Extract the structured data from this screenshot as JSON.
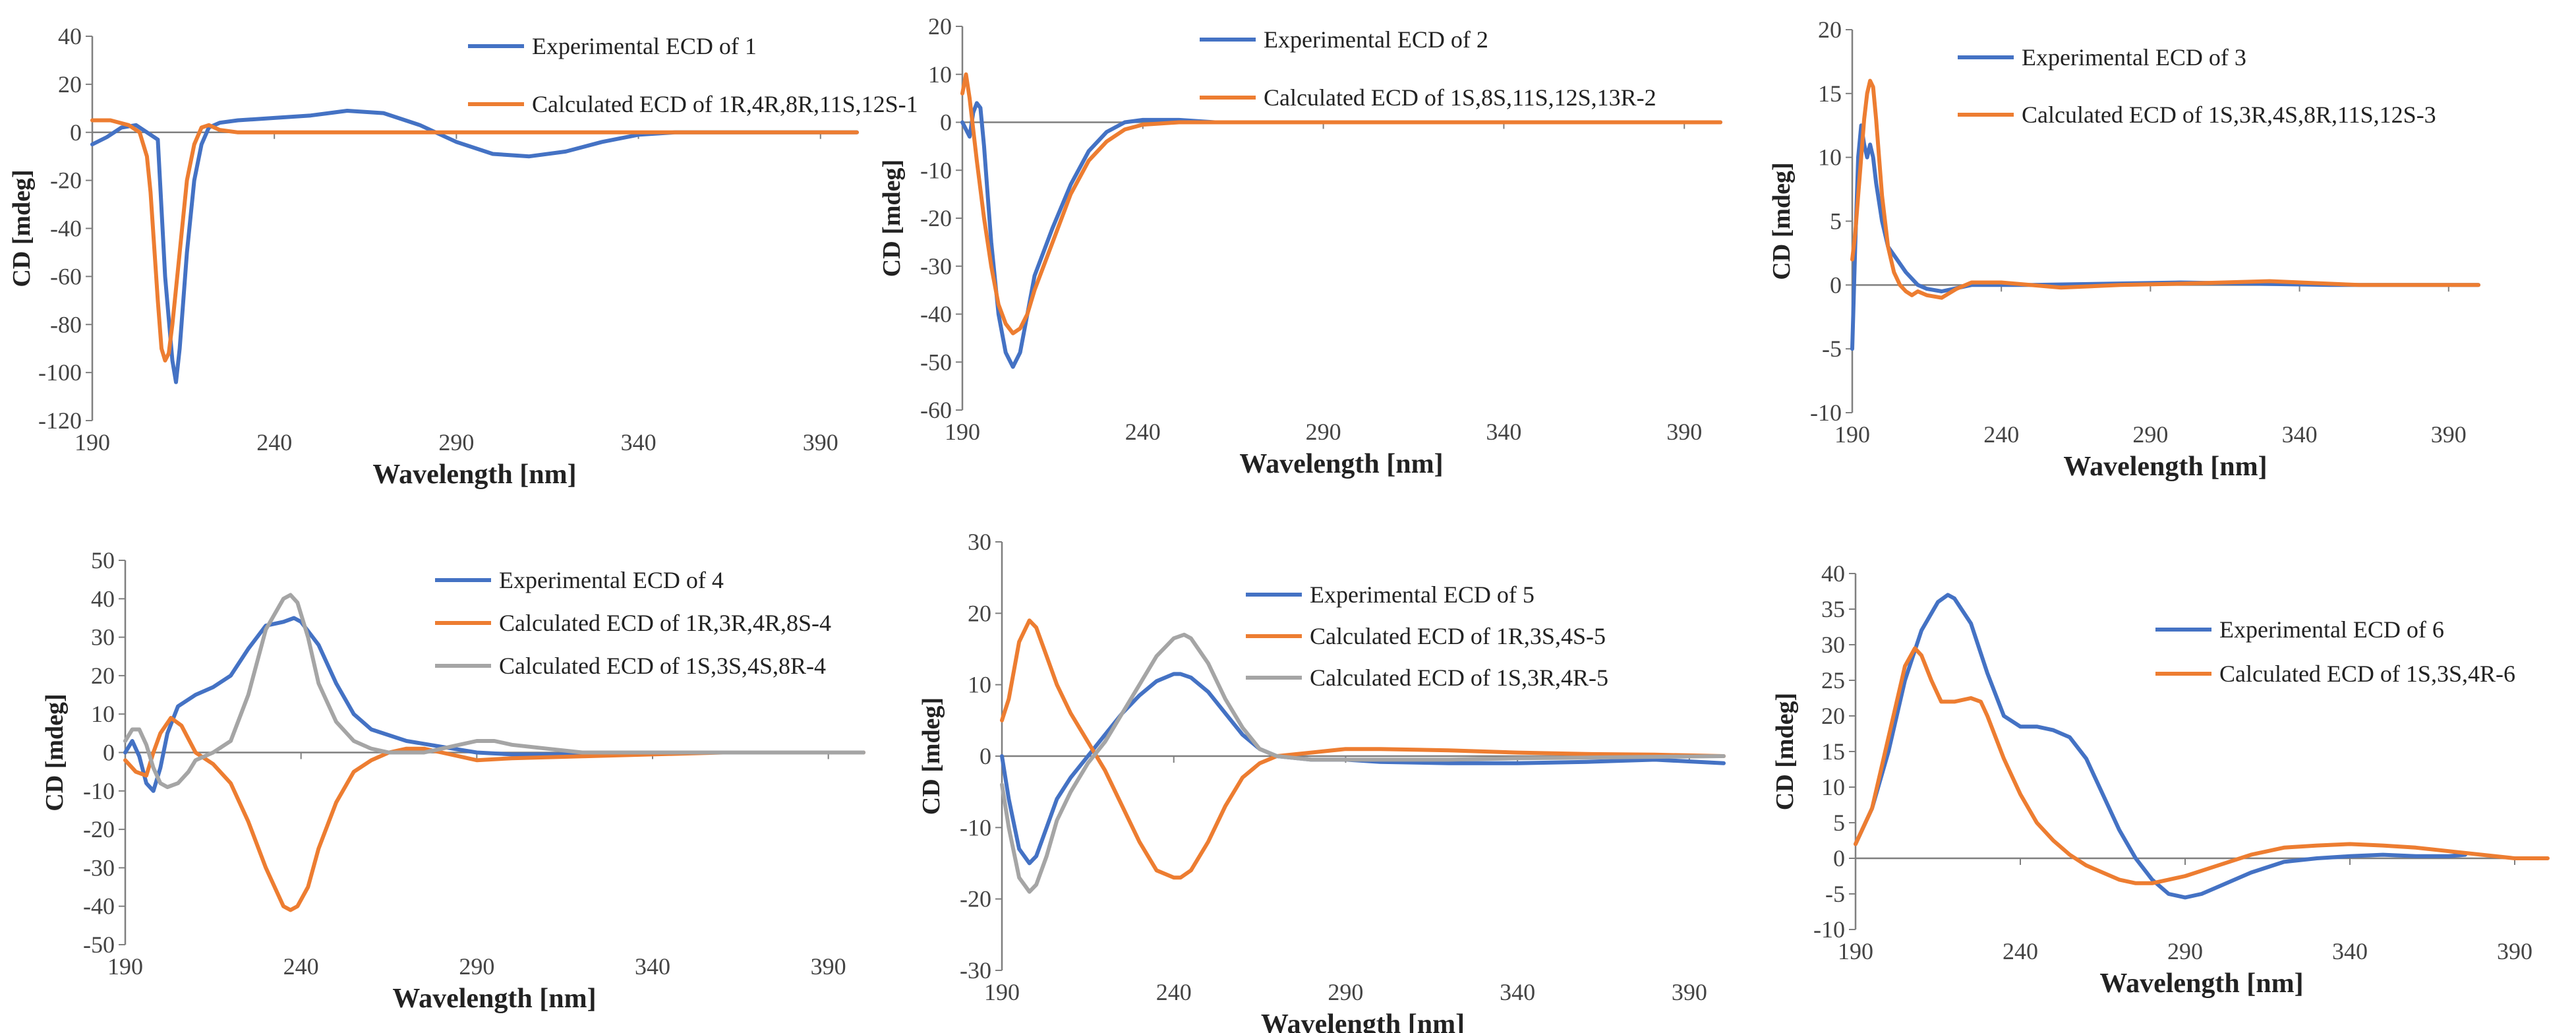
{
  "figure_title": "ECD comparison panels for compounds 1-6",
  "colors": {
    "experimental": "#4472C4",
    "calc_a": "#ED7D31",
    "calc_b": "#A5A5A5",
    "axis": "#7F7F7F"
  },
  "chart_data": [
    {
      "type": "line",
      "panel": "1",
      "xlabel": "Wavelength [nm]",
      "ylabel": "CD [mdeg]",
      "xlim": [
        190,
        400
      ],
      "ylim": [
        -120,
        40
      ],
      "x_ticks": [
        "190",
        "240",
        "290",
        "340",
        "390"
      ],
      "y_ticks": [
        "40",
        "20",
        "0",
        "-20",
        "-40",
        "-60",
        "-80",
        "-100",
        "-120"
      ],
      "series": [
        {
          "name": "Experimental ECD of 1",
          "color_key": "experimental",
          "x": [
            190,
            194,
            198,
            202,
            205,
            208,
            210,
            212,
            213,
            214,
            216,
            218,
            220,
            222,
            225,
            230,
            240,
            250,
            260,
            270,
            280,
            290,
            300,
            310,
            320,
            330,
            340,
            350,
            360,
            380,
            400
          ],
          "y": [
            -5,
            -2,
            2,
            3,
            0,
            -3,
            -60,
            -95,
            -104,
            -90,
            -50,
            -20,
            -5,
            2,
            4,
            5,
            6,
            7,
            9,
            8,
            3,
            -4,
            -9,
            -10,
            -8,
            -4,
            -1,
            0,
            0,
            0,
            0
          ]
        },
        {
          "name": "Calculated ECD of 1R,4R,8R,11S,12S-1",
          "color_key": "calc_a",
          "x": [
            190,
            195,
            200,
            203,
            205,
            206,
            208,
            209,
            210,
            211,
            212,
            214,
            216,
            218,
            220,
            222,
            225,
            230,
            240,
            260,
            300,
            400
          ],
          "y": [
            5,
            5,
            3,
            0,
            -10,
            -25,
            -70,
            -90,
            -95,
            -92,
            -80,
            -50,
            -20,
            -5,
            2,
            3,
            1,
            0,
            0,
            0,
            0,
            0
          ]
        }
      ]
    },
    {
      "type": "line",
      "panel": "2",
      "xlabel": "Wavelength [nm]",
      "ylabel": "CD [mdeg]",
      "xlim": [
        190,
        400
      ],
      "ylim": [
        -60,
        20
      ],
      "x_ticks": [
        "190",
        "240",
        "290",
        "340",
        "390"
      ],
      "y_ticks": [
        "20",
        "10",
        "0",
        "-10",
        "-20",
        "-30",
        "-40",
        "-50",
        "-60"
      ],
      "series": [
        {
          "name": "Experimental ECD of 2",
          "color_key": "experimental",
          "x": [
            190,
            192,
            193,
            194,
            195,
            196,
            197,
            198,
            200,
            202,
            204,
            206,
            208,
            210,
            215,
            220,
            225,
            230,
            235,
            240,
            250,
            260,
            300,
            350,
            400
          ],
          "y": [
            0,
            -3,
            2,
            4,
            3,
            -5,
            -15,
            -25,
            -40,
            -48,
            -51,
            -48,
            -40,
            -32,
            -22,
            -13,
            -6,
            -2,
            0,
            0.5,
            0.5,
            0,
            0,
            0,
            0
          ]
        },
        {
          "name": "Calculated ECD of 1S,8S,11S,12S,13R-2",
          "color_key": "calc_a",
          "x": [
            190,
            191,
            192,
            194,
            196,
            198,
            200,
            202,
            204,
            206,
            208,
            210,
            215,
            220,
            225,
            230,
            235,
            240,
            250,
            260,
            300,
            400
          ],
          "y": [
            6,
            10,
            5,
            -8,
            -20,
            -30,
            -38,
            -42,
            -44,
            -43,
            -40,
            -35,
            -25,
            -15,
            -8,
            -4,
            -1.5,
            -0.5,
            0,
            0,
            0,
            0
          ]
        }
      ]
    },
    {
      "type": "line",
      "panel": "3",
      "xlabel": "Wavelength [nm]",
      "ylabel": "CD [mdeg]",
      "xlim": [
        190,
        400
      ],
      "ylim": [
        -10,
        20
      ],
      "x_ticks": [
        "190",
        "240",
        "290",
        "340",
        "390"
      ],
      "y_ticks": [
        "20",
        "15",
        "10",
        "5",
        "0",
        "-5",
        "-10"
      ],
      "series": [
        {
          "name": "Experimental ECD of 3",
          "color_key": "experimental",
          "x": [
            190,
            191,
            192,
            193,
            194,
            195,
            196,
            197,
            198,
            200,
            202,
            205,
            208,
            212,
            215,
            220,
            230,
            250,
            300,
            350,
            400
          ],
          "y": [
            -5,
            3,
            10,
            12.5,
            11,
            10,
            11,
            10,
            8,
            5,
            3,
            2,
            1,
            0,
            -0.3,
            -0.5,
            0,
            0,
            0.2,
            0,
            0
          ]
        },
        {
          "name": "Calculated ECD of 1S,3R,4S,8R,11S,12S-3",
          "color_key": "calc_a",
          "x": [
            190,
            191,
            192,
            193,
            194,
            195,
            196,
            197,
            198,
            199,
            200,
            202,
            204,
            206,
            208,
            210,
            212,
            215,
            220,
            225,
            230,
            240,
            260,
            280,
            300,
            330,
            360,
            400
          ],
          "y": [
            2,
            4,
            7,
            10,
            13,
            15,
            16,
            15.5,
            13,
            10,
            7,
            3,
            1,
            0,
            -0.5,
            -0.8,
            -0.5,
            -0.8,
            -1,
            -0.3,
            0.2,
            0.2,
            -0.2,
            0,
            0.1,
            0.3,
            0,
            0
          ]
        }
      ]
    },
    {
      "type": "line",
      "panel": "4",
      "xlabel": "Wavelength [nm]",
      "ylabel": "CD [mdeg]",
      "xlim": [
        190,
        400
      ],
      "ylim": [
        -50,
        50
      ],
      "x_ticks": [
        "190",
        "240",
        "290",
        "340",
        "390"
      ],
      "y_ticks": [
        "50",
        "40",
        "30",
        "20",
        "10",
        "0",
        "-10",
        "-20",
        "-30",
        "-40",
        "-50"
      ],
      "series": [
        {
          "name": "Experimental ECD of 4",
          "color_key": "experimental",
          "x": [
            190,
            192,
            194,
            196,
            198,
            200,
            202,
            205,
            210,
            215,
            220,
            225,
            230,
            235,
            238,
            240,
            245,
            250,
            255,
            260,
            270,
            280,
            290,
            300,
            320,
            340,
            360,
            400
          ],
          "y": [
            0,
            3,
            -1,
            -8,
            -10,
            -4,
            5,
            12,
            15,
            17,
            20,
            27,
            33,
            34,
            35,
            34,
            28,
            18,
            10,
            6,
            3,
            1.5,
            0,
            -0.5,
            -0.5,
            0,
            0,
            0
          ]
        },
        {
          "name": "Calculated ECD of 1R,3R,4R,8S-4",
          "color_key": "calc_a",
          "x": [
            190,
            193,
            196,
            198,
            200,
            203,
            206,
            210,
            215,
            220,
            225,
            230,
            235,
            237,
            239,
            242,
            245,
            250,
            255,
            260,
            265,
            270,
            275,
            280,
            290,
            300,
            320,
            340,
            360,
            400
          ],
          "y": [
            -2,
            -5,
            -6,
            0,
            5,
            9,
            7,
            0,
            -3,
            -8,
            -18,
            -30,
            -40,
            -41,
            -40,
            -35,
            -25,
            -13,
            -5,
            -2,
            0,
            1,
            1,
            0,
            -2,
            -1.5,
            -1,
            -0.5,
            0,
            0
          ]
        },
        {
          "name": "Calculated ECD of 1S,3S,4S,8R-4",
          "color_key": "calc_b",
          "x": [
            190,
            192,
            194,
            196,
            198,
            200,
            202,
            205,
            208,
            210,
            215,
            220,
            225,
            230,
            235,
            237,
            239,
            242,
            245,
            250,
            255,
            260,
            265,
            270,
            275,
            280,
            285,
            290,
            295,
            300,
            310,
            320,
            340,
            360,
            400
          ],
          "y": [
            3,
            6,
            6,
            2,
            -4,
            -8,
            -9,
            -8,
            -5,
            -2,
            0,
            3,
            15,
            32,
            40,
            41,
            39,
            30,
            18,
            8,
            3,
            1,
            0,
            0,
            0,
            1,
            2,
            3,
            3,
            2,
            1,
            0,
            0,
            0,
            0
          ]
        }
      ]
    },
    {
      "type": "line",
      "panel": "5",
      "xlabel": "Wavelength [nm]",
      "ylabel": "CD [mdeg]",
      "xlim": [
        190,
        400
      ],
      "ylim": [
        -30,
        30
      ],
      "x_ticks": [
        "190",
        "240",
        "290",
        "340",
        "390"
      ],
      "y_ticks": [
        "30",
        "20",
        "10",
        "0",
        "-10",
        "-20",
        "-30"
      ],
      "series": [
        {
          "name": "Experimental ECD of 5",
          "color_key": "experimental",
          "x": [
            190,
            192,
            195,
            198,
            200,
            203,
            206,
            210,
            215,
            220,
            225,
            230,
            235,
            240,
            242,
            245,
            250,
            255,
            260,
            265,
            270,
            280,
            290,
            300,
            320,
            340,
            360,
            380,
            400
          ],
          "y": [
            0,
            -6,
            -13,
            -15,
            -14,
            -10,
            -6,
            -3,
            0,
            3,
            6,
            8.5,
            10.5,
            11.5,
            11.5,
            11,
            9,
            6,
            3,
            1,
            0,
            -0.5,
            -0.5,
            -0.8,
            -1,
            -1,
            -0.8,
            -0.5,
            -1
          ]
        },
        {
          "name": "Calculated ECD of 1R,3S,4S-5",
          "color_key": "calc_a",
          "x": [
            190,
            192,
            195,
            198,
            200,
            203,
            206,
            210,
            215,
            220,
            225,
            230,
            235,
            240,
            242,
            245,
            250,
            255,
            260,
            265,
            270,
            280,
            290,
            300,
            320,
            340,
            360,
            380,
            400
          ],
          "y": [
            5,
            8,
            16,
            19,
            18,
            14,
            10,
            6,
            2,
            -2,
            -7,
            -12,
            -16,
            -17,
            -17,
            -16,
            -12,
            -7,
            -3,
            -1,
            0,
            0.5,
            1,
            1,
            0.8,
            0.5,
            0.3,
            0.2,
            0
          ]
        },
        {
          "name": "Calculated ECD of 1S,3R,4R-5",
          "color_key": "calc_b",
          "x": [
            190,
            192,
            195,
            198,
            200,
            203,
            206,
            210,
            215,
            220,
            225,
            230,
            235,
            240,
            243,
            245,
            250,
            255,
            260,
            265,
            270,
            280,
            290,
            300,
            320,
            340,
            360,
            400
          ],
          "y": [
            -4,
            -10,
            -17,
            -19,
            -18,
            -14,
            -9,
            -5,
            -1,
            2,
            6,
            10,
            14,
            16.5,
            17,
            16.5,
            13,
            8,
            4,
            1,
            0,
            -0.5,
            -0.5,
            -0.5,
            -0.5,
            -0.3,
            -0.2,
            0
          ]
        }
      ]
    },
    {
      "type": "line",
      "panel": "6",
      "xlabel": "Wavelength [nm]",
      "ylabel": "CD [mdeg]",
      "xlim": [
        190,
        400
      ],
      "ylim": [
        -10,
        40
      ],
      "x_ticks": [
        "190",
        "240",
        "290",
        "340",
        "390"
      ],
      "y_ticks": [
        "40",
        "35",
        "30",
        "25",
        "20",
        "15",
        "10",
        "5",
        "0",
        "-5",
        "-10"
      ],
      "series": [
        {
          "name": "Experimental ECD of 6",
          "color_key": "experimental",
          "x": [
            190,
            195,
            200,
            205,
            210,
            215,
            218,
            220,
            225,
            230,
            235,
            240,
            245,
            250,
            255,
            260,
            265,
            270,
            275,
            280,
            285,
            290,
            295,
            300,
            310,
            320,
            330,
            340,
            350,
            360,
            370,
            375
          ],
          "y": [
            2,
            7,
            15,
            25,
            32,
            36,
            37,
            36.5,
            33,
            26,
            20,
            18.5,
            18.5,
            18,
            17,
            14,
            9,
            4,
            0,
            -3,
            -5,
            -5.5,
            -5,
            -4,
            -2,
            -0.5,
            0,
            0.3,
            0.5,
            0.3,
            0.3,
            0.5
          ]
        },
        {
          "name": "Calculated ECD of 1S,3S,4R-6",
          "color_key": "calc_a",
          "x": [
            190,
            195,
            200,
            205,
            208,
            210,
            213,
            216,
            220,
            225,
            228,
            230,
            235,
            240,
            245,
            250,
            255,
            260,
            265,
            270,
            275,
            280,
            285,
            290,
            300,
            310,
            320,
            330,
            340,
            350,
            360,
            370,
            380,
            390,
            400
          ],
          "y": [
            2,
            7,
            17,
            27,
            29.5,
            28.5,
            25,
            22,
            22,
            22.5,
            22,
            20,
            14,
            9,
            5,
            2.5,
            0.5,
            -1,
            -2,
            -3,
            -3.5,
            -3.5,
            -3,
            -2.5,
            -1,
            0.5,
            1.5,
            1.8,
            2,
            1.8,
            1.5,
            1,
            0.5,
            0,
            0
          ]
        }
      ]
    }
  ]
}
